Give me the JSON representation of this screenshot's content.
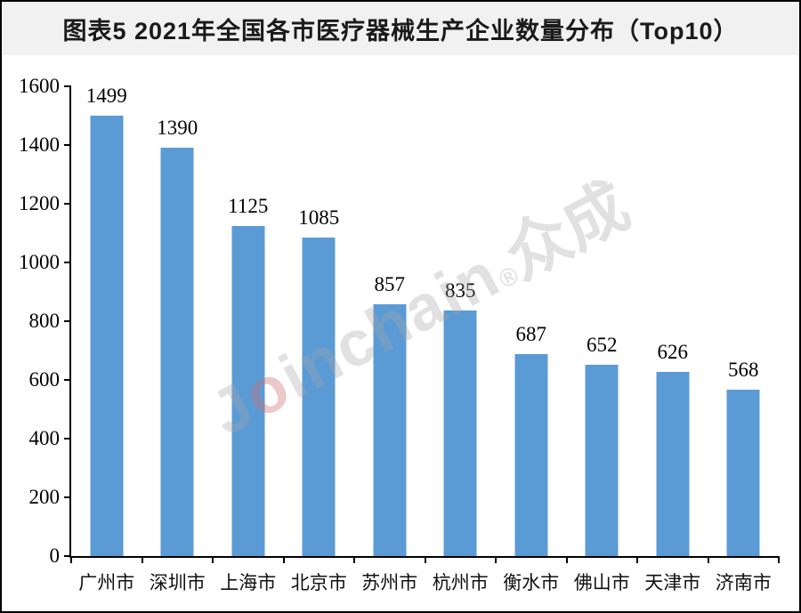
{
  "header": {
    "title": "图表5 2021年全国各市医疗器械生产企业数量分布（Top10）"
  },
  "watermark": {
    "j": "J",
    "o": "o",
    "inchain": "inchain",
    "mark": "®",
    "cjk": "众成"
  },
  "chart_data": {
    "type": "bar",
    "title": "图表5 2021年全国各市医疗器械生产企业数量分布（Top10）",
    "categories": [
      "广州市",
      "深圳市",
      "上海市",
      "北京市",
      "苏州市",
      "杭州市",
      "衡水市",
      "佛山市",
      "天津市",
      "济南市"
    ],
    "values": [
      1499,
      1390,
      1125,
      1085,
      857,
      835,
      687,
      652,
      626,
      568
    ],
    "xlabel": "",
    "ylabel": "",
    "ylim": [
      0,
      1600
    ],
    "ytick_interval": 200,
    "grid": false,
    "legend_position": "none",
    "bar_color": "#5B9BD5",
    "axis_color": "#000000",
    "value_labels_shown": true
  },
  "colors": {
    "bar": "#5B9BD5",
    "title_band_bg": "#f1f1f1",
    "chart_bg": "#ffffff",
    "border": "#000000",
    "text": "#1a1a1a",
    "watermark": "#a5a5a5"
  }
}
